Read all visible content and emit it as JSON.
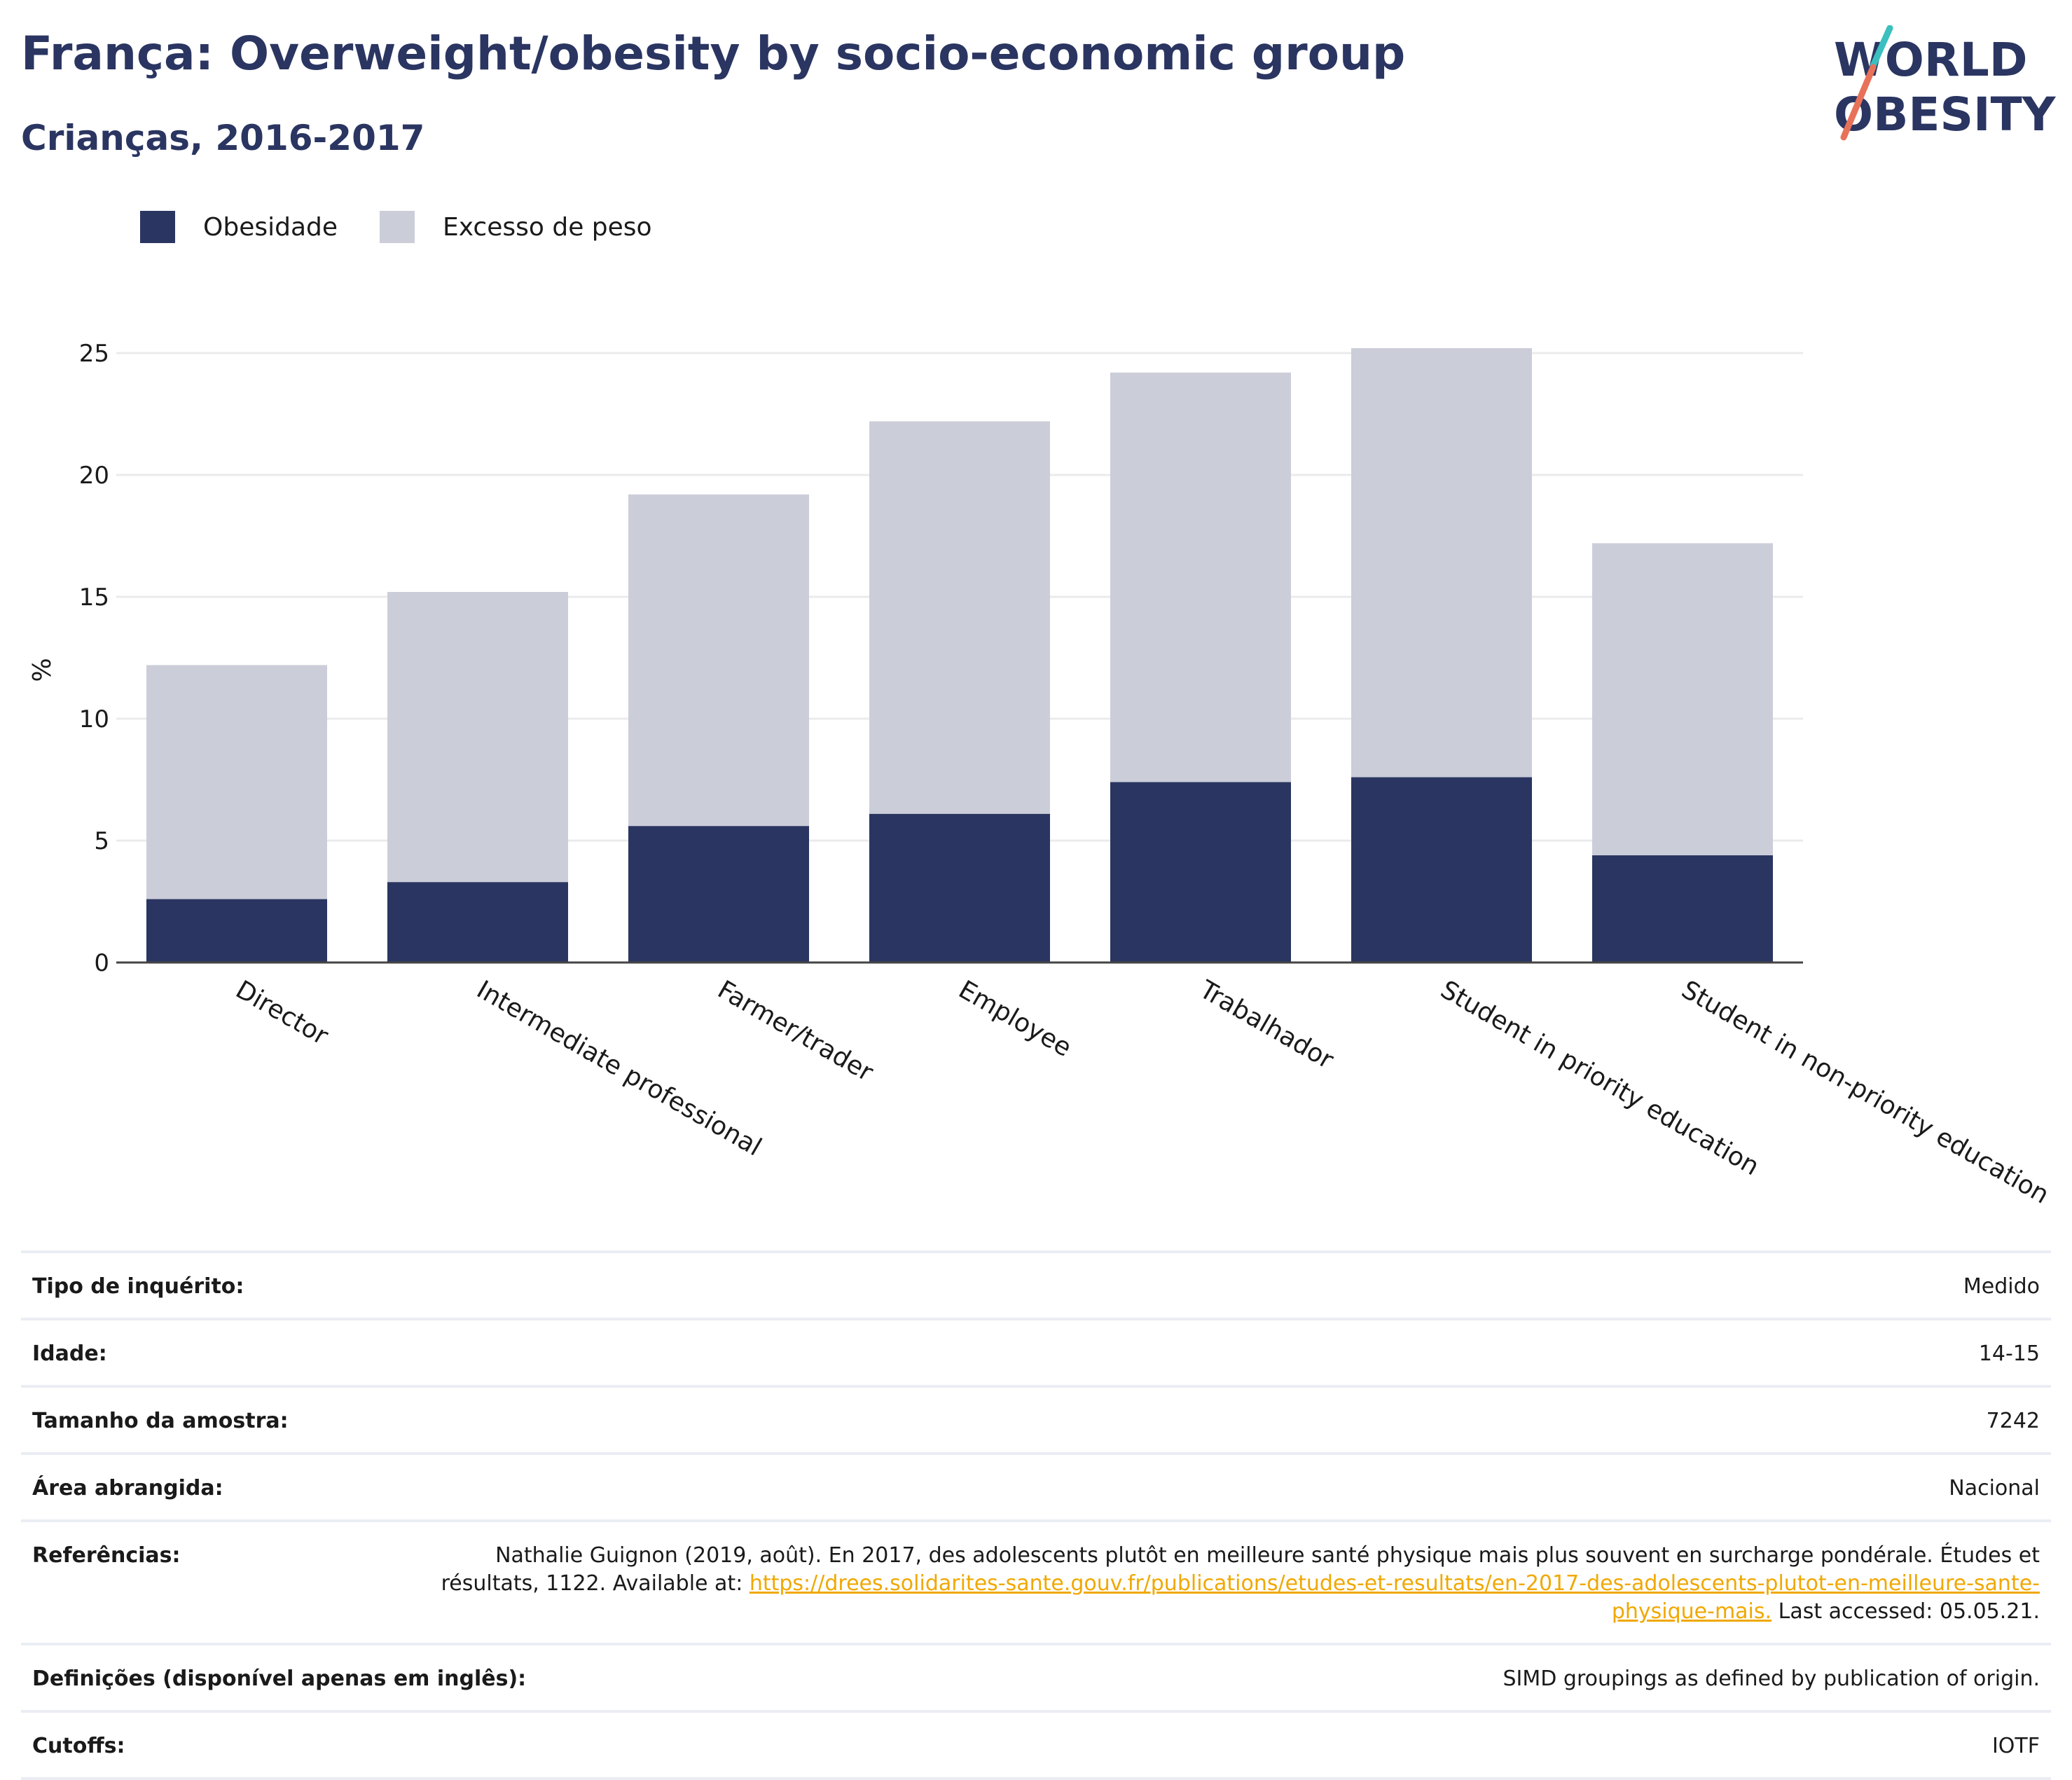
{
  "header": {
    "title": "França: Overweight/obesity by socio-economic group",
    "subtitle": "Crianças, 2016-2017"
  },
  "logo": {
    "line1": "WORLD",
    "line2": "OBESITY"
  },
  "colors": {
    "obesity": "#2a3561",
    "overweight": "#cbcdd9",
    "title": "#2a3561",
    "link": "#f0a800",
    "grid": "#ebebeb"
  },
  "chart_data": {
    "type": "bar",
    "stacked": true,
    "categories": [
      "Director",
      "Intermediate professional",
      "Farmer/trader",
      "Employee",
      "Trabalhador",
      "Student in priority education",
      "Student in non-priority education"
    ],
    "series": [
      {
        "name": "Obesidade",
        "values": [
          2.6,
          3.3,
          5.6,
          6.1,
          7.4,
          7.6,
          4.4
        ]
      },
      {
        "name": "Excesso de peso",
        "values": [
          9.6,
          11.9,
          13.6,
          16.1,
          16.8,
          17.6,
          12.8
        ]
      }
    ],
    "ylabel": "%",
    "yticks": [
      0,
      5,
      10,
      15,
      20,
      25
    ],
    "ylim": [
      0,
      27
    ],
    "grid": true,
    "legend_position": "top-left"
  },
  "meta": {
    "survey_type": {
      "label": "Tipo de inquérito:",
      "value": "Medido"
    },
    "age": {
      "label": "Idade:",
      "value": "14-15"
    },
    "sample": {
      "label": "Tamanho da amostra:",
      "value": "7242"
    },
    "area": {
      "label": "Área abrangida:",
      "value": "Nacional"
    },
    "references": {
      "label": "Referências:",
      "text_before": "Nathalie Guignon (2019, août). En 2017, des adolescents plutôt en meilleure santé physique mais plus souvent en surcharge pondérale. Études et résultats, 1122. Available at: ",
      "link": "https://drees.solidarites-sante.gouv.fr/publications/etudes-et-resultats/en-2017-des-adolescents-plutot-en-meilleure-sante-physique-mais.",
      "text_after": " Last accessed: 05.05.21."
    },
    "definitions": {
      "label": "Definições (disponível apenas em inglês):",
      "value": "SIMD groupings as defined by publication of origin."
    },
    "cutoffs": {
      "label": "Cutoffs:",
      "value": "IOTF"
    }
  }
}
